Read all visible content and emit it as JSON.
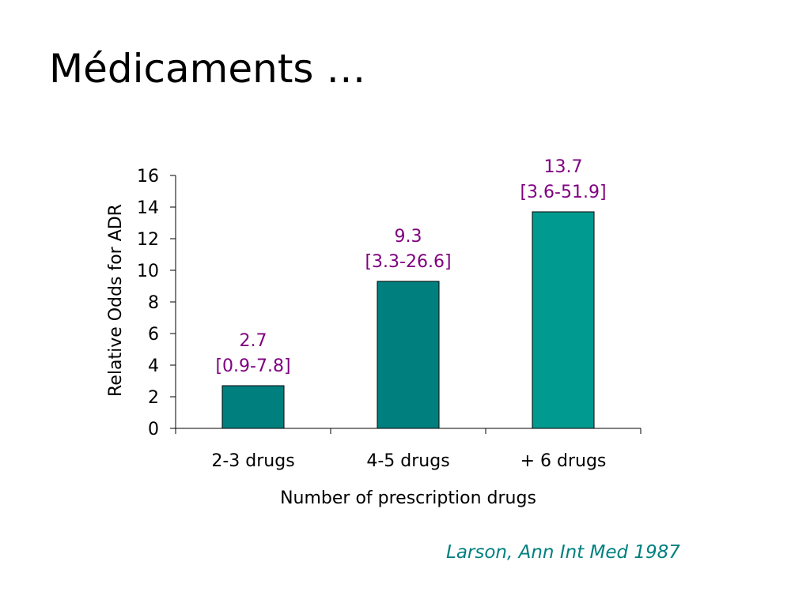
{
  "slide": {
    "title": "Médicaments …"
  },
  "citation": {
    "text": "Larson, Ann Int Med 1987",
    "color": "#008080"
  },
  "chart_data": {
    "type": "bar",
    "title": "",
    "xlabel": "Number of prescription drugs",
    "ylabel": "Relative Odds for ADR",
    "categories": [
      "2-3 drugs",
      "4-5 drugs",
      "+ 6 drugs"
    ],
    "values": [
      2.7,
      9.3,
      13.7
    ],
    "data_labels": [
      {
        "value": "2.7",
        "interval": "[0.9-7.8]"
      },
      {
        "value": "9.3",
        "interval": "[3.3-26.6]"
      },
      {
        "value": "13.7",
        "interval": "[3.6-51.9]"
      }
    ],
    "ylim": [
      0,
      16
    ],
    "yticks": [
      0,
      2,
      4,
      6,
      8,
      10,
      12,
      14,
      16
    ],
    "grid": false,
    "legend": "none",
    "colors": {
      "bars": [
        "#007F7F",
        "#007F7F",
        "#009A90"
      ],
      "bar_outline": "#000000",
      "data_label": "#800080",
      "axis": "#000000"
    }
  }
}
